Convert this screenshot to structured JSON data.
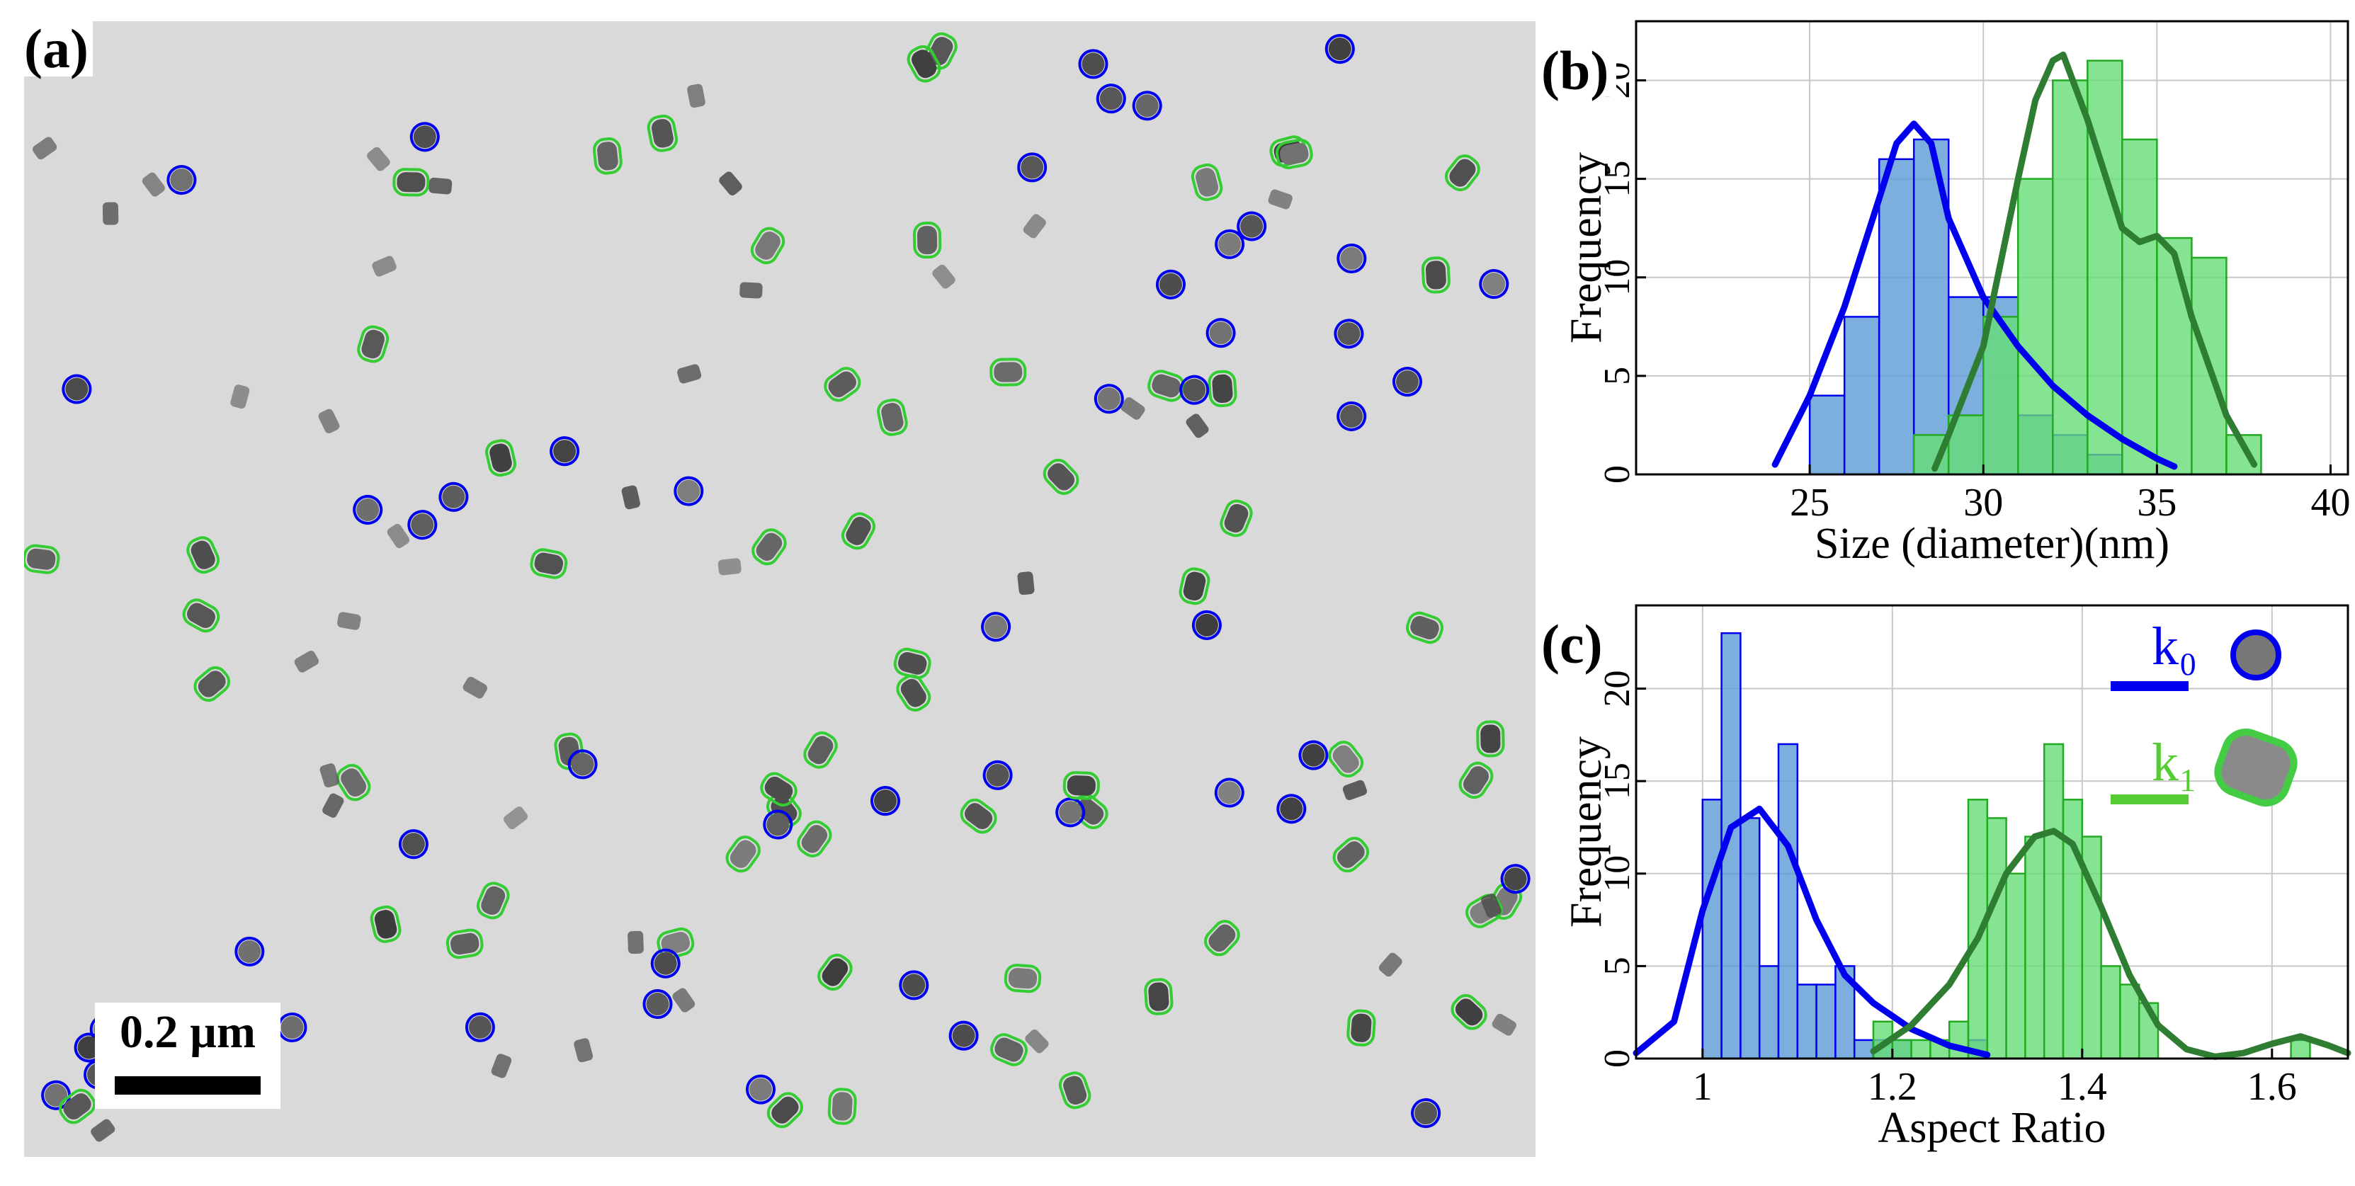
{
  "panels": {
    "a": {
      "label": "(a)",
      "scale_bar": "0.2 µm"
    },
    "b": {
      "label": "(b)"
    },
    "c": {
      "label": "(c)"
    }
  },
  "colors": {
    "blue": "#0000ee",
    "green": "#33cc33",
    "blue_fill": "#5b9bd5",
    "green_fill": "#66dd77",
    "dark_green": "#2e7d32",
    "bg": "#d9d9d9"
  },
  "legend": {
    "k0": "k₀",
    "k1": "k₁"
  },
  "chart_data": [
    {
      "id": "b",
      "type": "bar",
      "xlabel": "Size (diameter)(nm)",
      "ylabel": "Frequency",
      "xlim": [
        20,
        40.5
      ],
      "ylim": [
        0,
        23
      ],
      "xticks": [
        25,
        30,
        35,
        40
      ],
      "yticks": [
        0,
        5,
        10,
        15,
        20
      ],
      "grid": true,
      "series": [
        {
          "name": "k0",
          "bin_width": 1,
          "bins": [
            25,
            26,
            27,
            28,
            29,
            30,
            31,
            32,
            33,
            34
          ],
          "values": [
            4,
            8,
            16,
            17,
            9,
            9,
            3,
            2,
            1,
            0
          ],
          "kde_x": [
            24,
            25,
            26,
            27,
            27.5,
            28,
            28.5,
            29,
            30,
            31,
            32,
            33,
            34,
            35,
            35.5
          ],
          "kde_y": [
            0.5,
            4,
            8.5,
            14,
            16.8,
            17.8,
            16.8,
            13,
            9,
            6.5,
            4.5,
            3,
            1.8,
            0.8,
            0.4
          ]
        },
        {
          "name": "k1",
          "bin_width": 1,
          "bins": [
            28,
            29,
            30,
            31,
            32,
            33,
            34,
            35,
            36,
            37
          ],
          "values": [
            2,
            3,
            8,
            15,
            20,
            21,
            17,
            12,
            11,
            2
          ],
          "kde_x": [
            28.6,
            29,
            30,
            31,
            31.5,
            32,
            32.3,
            33,
            34,
            34.5,
            35,
            35.5,
            36,
            37,
            37.8
          ],
          "kde_y": [
            0.3,
            2,
            6.5,
            15,
            19,
            21,
            21.3,
            18,
            12.5,
            11.8,
            12.1,
            11.2,
            8,
            3,
            0.5
          ]
        }
      ]
    },
    {
      "id": "c",
      "type": "bar",
      "xlabel": "Aspect Ratio",
      "ylabel": "Frequency",
      "xlim": [
        0.93,
        1.68
      ],
      "ylim": [
        0,
        24.5
      ],
      "xticks": [
        1,
        1.2,
        1.4,
        1.6
      ],
      "yticks": [
        0,
        5,
        10,
        15,
        20
      ],
      "grid": true,
      "series": [
        {
          "name": "k0",
          "bin_width": 0.02,
          "bins": [
            1.0,
            1.02,
            1.04,
            1.06,
            1.08,
            1.1,
            1.12,
            1.14,
            1.16,
            1.18,
            1.2,
            1.22,
            1.24,
            1.26,
            1.28
          ],
          "values": [
            14,
            23,
            13,
            5,
            17,
            4,
            4,
            5,
            1,
            1,
            1,
            0,
            0,
            0,
            1
          ],
          "kde_x": [
            0.93,
            0.97,
            1.0,
            1.03,
            1.06,
            1.09,
            1.12,
            1.15,
            1.18,
            1.22,
            1.26,
            1.3
          ],
          "kde_y": [
            0.3,
            2,
            8,
            12.5,
            13.5,
            11.5,
            7.5,
            4.5,
            3,
            1.6,
            0.7,
            0.2
          ]
        },
        {
          "name": "k1",
          "bin_width": 0.02,
          "bins": [
            1.18,
            1.2,
            1.22,
            1.24,
            1.26,
            1.28,
            1.3,
            1.32,
            1.34,
            1.36,
            1.38,
            1.4,
            1.42,
            1.44,
            1.46,
            1.48,
            1.5,
            1.52,
            1.54,
            1.56,
            1.58,
            1.6,
            1.62,
            1.64
          ],
          "values": [
            2,
            1,
            1,
            1,
            2,
            14,
            13,
            10,
            12,
            17,
            14,
            12,
            5,
            4,
            3,
            0,
            0,
            0,
            0,
            0,
            0,
            0,
            1,
            0
          ],
          "kde_x": [
            1.18,
            1.22,
            1.26,
            1.29,
            1.32,
            1.35,
            1.37,
            1.39,
            1.42,
            1.45,
            1.48,
            1.51,
            1.54,
            1.57,
            1.6,
            1.63,
            1.66,
            1.68
          ],
          "kde_y": [
            0.4,
            1.8,
            4,
            6.5,
            10,
            12,
            12.3,
            11.6,
            8.2,
            4.5,
            1.8,
            0.5,
            0.1,
            0.3,
            0.8,
            1.2,
            0.7,
            0.3
          ]
        }
      ]
    }
  ]
}
